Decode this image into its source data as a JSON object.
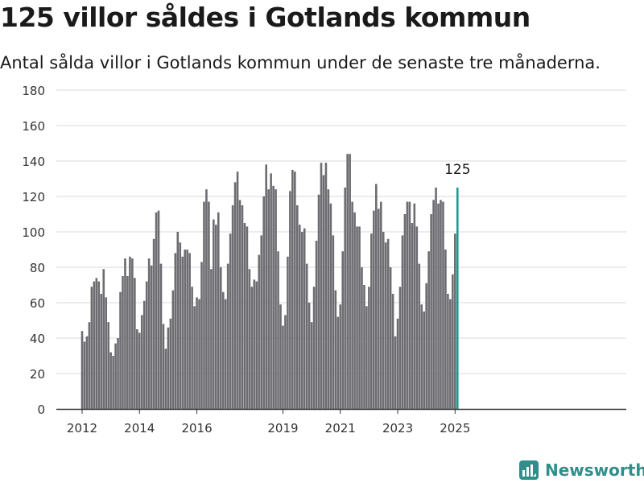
{
  "header": {
    "title": "125 villor såldes i Gotlands kommun",
    "subtitle": "Antal sålda villor i Gotlands kommun under de senaste tre månaderna."
  },
  "brand": {
    "name": "Newsworthy",
    "icon": "newsworthy-logo-icon",
    "color": "#2f8f8a"
  },
  "colors": {
    "bar": "#6d6c71",
    "highlight": "#1f9c92",
    "grid": "#d9d9d9",
    "axis": "#333333",
    "text": "#333333"
  },
  "chart_data": {
    "type": "bar",
    "x_start": "2012-01",
    "x_step": "month",
    "values": [
      44,
      38,
      41,
      49,
      69,
      72,
      74,
      72,
      65,
      79,
      63,
      49,
      32,
      30,
      37,
      40,
      66,
      75,
      85,
      75,
      86,
      85,
      74,
      45,
      43,
      53,
      61,
      72,
      85,
      81,
      96,
      111,
      112,
      82,
      48,
      34,
      46,
      51,
      67,
      88,
      100,
      94,
      86,
      90,
      90,
      88,
      69,
      58,
      63,
      62,
      83,
      117,
      124,
      117,
      79,
      107,
      104,
      111,
      80,
      66,
      62,
      82,
      99,
      115,
      128,
      134,
      118,
      115,
      105,
      103,
      79,
      69,
      73,
      72,
      87,
      98,
      120,
      138,
      124,
      133,
      126,
      124,
      89,
      59,
      47,
      53,
      86,
      123,
      135,
      134,
      115,
      104,
      100,
      102,
      82,
      60,
      49,
      69,
      95,
      121,
      139,
      132,
      139,
      124,
      116,
      98,
      67,
      52,
      59,
      89,
      125,
      144,
      144,
      117,
      111,
      103,
      103,
      80,
      70,
      58,
      69,
      99,
      112,
      127,
      113,
      117,
      100,
      94,
      96,
      80,
      65,
      41,
      51,
      69,
      98,
      110,
      117,
      117,
      105,
      116,
      103,
      82,
      59,
      55,
      71,
      89,
      110,
      118,
      125,
      116,
      118,
      117,
      90,
      65,
      62,
      76,
      99,
      125
    ],
    "highlight_last": true,
    "annotation": {
      "text": "125"
    },
    "x_ticks": [
      "2012",
      "2014",
      "2016",
      "2019",
      "2021",
      "2023",
      "2025"
    ],
    "x_tick_dates": [
      "2012-01",
      "2014-01",
      "2016-01",
      "2019-01",
      "2021-01",
      "2023-01",
      "2025-01"
    ],
    "y_ticks": [
      0,
      20,
      40,
      60,
      80,
      100,
      120,
      140,
      160,
      180
    ],
    "ylim": [
      0,
      180
    ],
    "grid": true,
    "xlabel": "",
    "ylabel": ""
  }
}
